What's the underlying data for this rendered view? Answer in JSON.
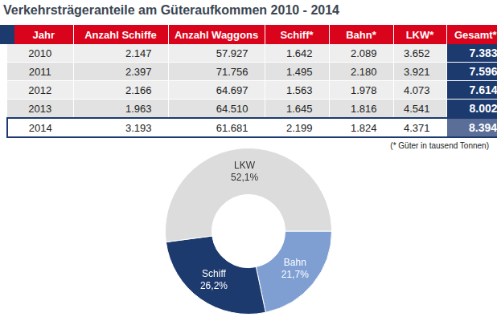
{
  "title": "Verkehrsträgeranteile am Güteraufkommen 2010 - 2014",
  "table": {
    "header": [
      "Jahr",
      "Anzahl Schiffe",
      "Anzahl Waggons",
      "Schiff*",
      "Bahn*",
      "LKW*",
      "Gesamt*"
    ],
    "rows": [
      [
        "2010",
        "2.147",
        "57.927",
        "1.642",
        "2.089",
        "3.652",
        "7.383"
      ],
      [
        "2011",
        "2.397",
        "71.756",
        "1.495",
        "2.180",
        "3.921",
        "7.596"
      ],
      [
        "2012",
        "2.166",
        "64.697",
        "1.563",
        "1.978",
        "4.073",
        "7.614"
      ],
      [
        "2013",
        "1.963",
        "64.510",
        "1.645",
        "1.816",
        "4.541",
        "8.002"
      ],
      [
        "2014",
        "3.193",
        "61.681",
        "2.199",
        "1.824",
        "4.371",
        "8.394"
      ]
    ]
  },
  "footnote": "(* Güter in tausend Tonnen)",
  "chart_data": {
    "type": "doughnut",
    "categories": [
      "Bahn",
      "Schiff",
      "LKW"
    ],
    "values": [
      21.7,
      26.2,
      52.1
    ],
    "value_labels": [
      "21,7%",
      "26,2%",
      "52,1%"
    ],
    "colors": [
      "#7f9fd3",
      "#1d3a6e",
      "#dcdcdc"
    ],
    "data_labels": true
  }
}
